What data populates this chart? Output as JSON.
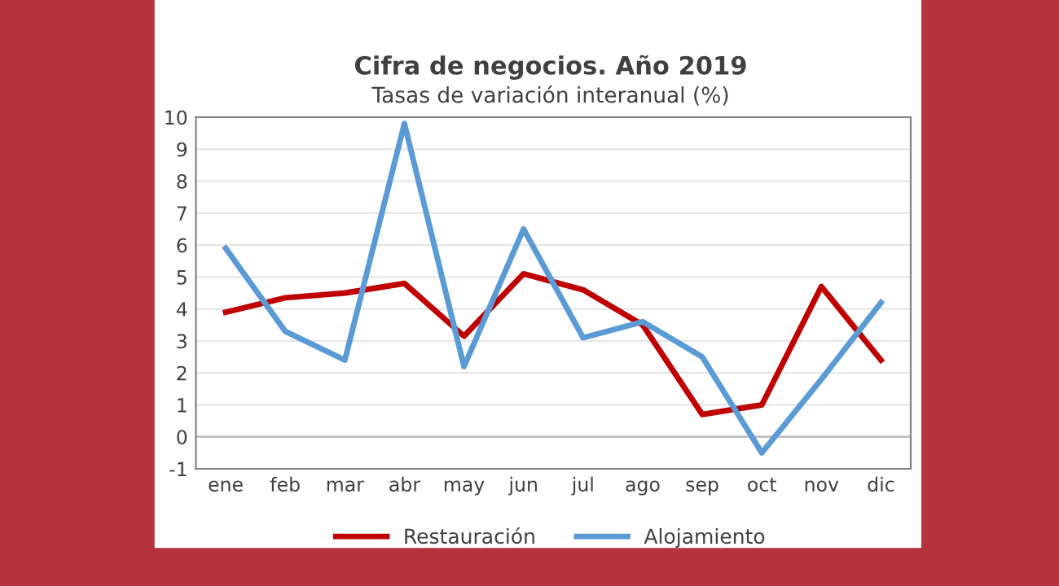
{
  "chart_data": {
    "type": "line",
    "title": "Cifra de negocios. Año 2019",
    "subtitle": "Tasas de variación interanual (%)",
    "categories": [
      "ene",
      "feb",
      "mar",
      "abr",
      "may",
      "jun",
      "jul",
      "ago",
      "sep",
      "oct",
      "nov",
      "dic"
    ],
    "series": [
      {
        "name": "Restauración",
        "color": "#c00000",
        "values": [
          3.9,
          4.35,
          4.5,
          4.8,
          3.15,
          5.1,
          4.6,
          3.5,
          0.7,
          1.0,
          4.7,
          2.4
        ]
      },
      {
        "name": "Alojamiento",
        "color": "#5b9bd5",
        "values": [
          5.9,
          3.3,
          2.4,
          9.8,
          2.2,
          6.5,
          3.1,
          3.6,
          2.5,
          -0.5,
          1.8,
          4.2
        ]
      }
    ],
    "ylim": [
      -1,
      10
    ],
    "yticks": [
      -1,
      0,
      1,
      2,
      3,
      4,
      5,
      6,
      7,
      8,
      9,
      10
    ],
    "grid": "y",
    "legend": "bottom",
    "marker": "none",
    "line_style": "solid"
  }
}
